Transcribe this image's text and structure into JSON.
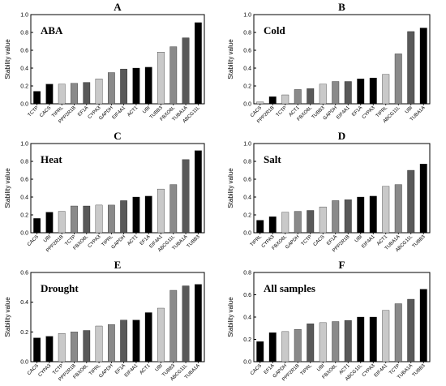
{
  "chart_data": [
    {
      "type": "bar",
      "panel": "A",
      "title": "ABA",
      "ylabel": "Stability value",
      "ylim": [
        0,
        1.0
      ],
      "yticks": [
        "0.0",
        "0.2",
        "0.4",
        "0.6",
        "0.8",
        "1.0"
      ],
      "categories": [
        "TCTP",
        "CACS",
        "TIPRL",
        "PPP2R1B",
        "EF1A",
        "CYPA3",
        "GAPDH",
        "EIF4A1",
        "ACT1",
        "UBI",
        "TUBB3",
        "FBXO6L",
        "TUBA1A",
        "ABCG11L"
      ],
      "values": [
        0.14,
        0.22,
        0.22,
        0.23,
        0.24,
        0.28,
        0.35,
        0.39,
        0.4,
        0.41,
        0.58,
        0.64,
        0.74,
        0.91
      ],
      "bar_colors": [
        "#000000",
        "#000000",
        "#c9c9c9",
        "#8a8a8a",
        "#595959",
        "#c9c9c9",
        "#8a8a8a",
        "#595959",
        "#000000",
        "#000000",
        "#c9c9c9",
        "#8a8a8a",
        "#595959",
        "#000000"
      ]
    },
    {
      "type": "bar",
      "panel": "B",
      "title": "Cold",
      "ylabel": "Stability value",
      "ylim": [
        0,
        1.0
      ],
      "yticks": [
        "0.0",
        "0.2",
        "0.4",
        "0.6",
        "0.8",
        "1.0"
      ],
      "categories": [
        "CACS",
        "PPP2R1B",
        "TCTP",
        "ACT1",
        "FBXO6L",
        "TUBB3",
        "GAPDH",
        "EIF4A1",
        "EF1A",
        "CYPA3",
        "TIPRL",
        "ABCG11L",
        "UBI",
        "TUBA1A"
      ],
      "values": [
        0.02,
        0.08,
        0.1,
        0.16,
        0.17,
        0.22,
        0.25,
        0.25,
        0.28,
        0.29,
        0.33,
        0.56,
        0.81,
        0.85
      ],
      "bar_colors": [
        "#c9c9c9",
        "#000000",
        "#c9c9c9",
        "#8a8a8a",
        "#595959",
        "#c9c9c9",
        "#8a8a8a",
        "#595959",
        "#000000",
        "#000000",
        "#c9c9c9",
        "#8a8a8a",
        "#595959",
        "#000000"
      ]
    },
    {
      "type": "bar",
      "panel": "C",
      "title": "Heat",
      "ylabel": "Stability value",
      "ylim": [
        0,
        1.0
      ],
      "yticks": [
        "0.0",
        "0.2",
        "0.4",
        "0.6",
        "0.8",
        "1.0"
      ],
      "categories": [
        "CACS",
        "UBI",
        "PPP2R1B",
        "TCTP",
        "FBXO6L",
        "CYPA3",
        "TIPRL",
        "GAPDH",
        "ACT1",
        "EF1A",
        "EIF4A1",
        "ABCG11L",
        "TUBA1A",
        "TUBB3"
      ],
      "values": [
        0.16,
        0.23,
        0.24,
        0.3,
        0.3,
        0.31,
        0.31,
        0.36,
        0.4,
        0.41,
        0.49,
        0.54,
        0.82,
        0.92
      ],
      "bar_colors": [
        "#000000",
        "#000000",
        "#c9c9c9",
        "#8a8a8a",
        "#595959",
        "#c9c9c9",
        "#8a8a8a",
        "#595959",
        "#000000",
        "#000000",
        "#c9c9c9",
        "#8a8a8a",
        "#595959",
        "#000000"
      ]
    },
    {
      "type": "bar",
      "panel": "D",
      "title": "Salt",
      "ylabel": "Stability value",
      "ylim": [
        0,
        1.0
      ],
      "yticks": [
        "0.0",
        "0.2",
        "0.4",
        "0.6",
        "0.8",
        "1.0"
      ],
      "categories": [
        "TIPRL",
        "CYPA3",
        "FBXO6L",
        "GAPDH",
        "TCTP",
        "CACS",
        "EF1A",
        "PPP2R1B",
        "UBI",
        "EIF4A1",
        "ACT1",
        "TUBA1A",
        "ABCG11L",
        "TUBB3"
      ],
      "values": [
        0.14,
        0.18,
        0.23,
        0.24,
        0.25,
        0.29,
        0.36,
        0.37,
        0.4,
        0.41,
        0.52,
        0.54,
        0.7,
        0.77
      ],
      "bar_colors": [
        "#000000",
        "#000000",
        "#c9c9c9",
        "#8a8a8a",
        "#595959",
        "#c9c9c9",
        "#8a8a8a",
        "#595959",
        "#000000",
        "#000000",
        "#c9c9c9",
        "#8a8a8a",
        "#595959",
        "#000000"
      ]
    },
    {
      "type": "bar",
      "panel": "E",
      "title": "Drought",
      "ylabel": "Stability value",
      "ylim": [
        0,
        0.6
      ],
      "yticks": [
        "0.0",
        "0.2",
        "0.4",
        "0.6"
      ],
      "categories": [
        "CACS",
        "CYPA3",
        "TCTP",
        "PPP2R1B",
        "FBXO6L",
        "TIPRL",
        "GAPDH",
        "EF1A",
        "EIF4A1",
        "ACT1",
        "UBI",
        "TUBB3",
        "ABCG11L",
        "TUBA1A"
      ],
      "values": [
        0.16,
        0.17,
        0.19,
        0.2,
        0.21,
        0.24,
        0.25,
        0.28,
        0.28,
        0.33,
        0.36,
        0.48,
        0.51,
        0.52
      ],
      "bar_colors": [
        "#000000",
        "#000000",
        "#c9c9c9",
        "#8a8a8a",
        "#595959",
        "#c9c9c9",
        "#8a8a8a",
        "#595959",
        "#000000",
        "#000000",
        "#c9c9c9",
        "#8a8a8a",
        "#595959",
        "#000000"
      ]
    },
    {
      "type": "bar",
      "panel": "F",
      "title": "All samples",
      "ylabel": "Stability value",
      "ylim": [
        0,
        0.8
      ],
      "yticks": [
        "0.0",
        "0.2",
        "0.4",
        "0.6",
        "0.8"
      ],
      "categories": [
        "CACS",
        "EF1A",
        "GAPDH",
        "PPP2R1B",
        "TIPRL",
        "UBI",
        "FBXO6L",
        "ACT1",
        "ABCG11L",
        "CYPA3",
        "EIF4A1",
        "TCTP",
        "TUBA1A",
        "TUBB3"
      ],
      "values": [
        0.18,
        0.26,
        0.27,
        0.29,
        0.34,
        0.35,
        0.36,
        0.37,
        0.4,
        0.4,
        0.46,
        0.52,
        0.56,
        0.65
      ],
      "bar_colors": [
        "#000000",
        "#000000",
        "#c9c9c9",
        "#8a8a8a",
        "#595959",
        "#c9c9c9",
        "#8a8a8a",
        "#595959",
        "#000000",
        "#000000",
        "#c9c9c9",
        "#8a8a8a",
        "#595959",
        "#000000"
      ]
    }
  ]
}
